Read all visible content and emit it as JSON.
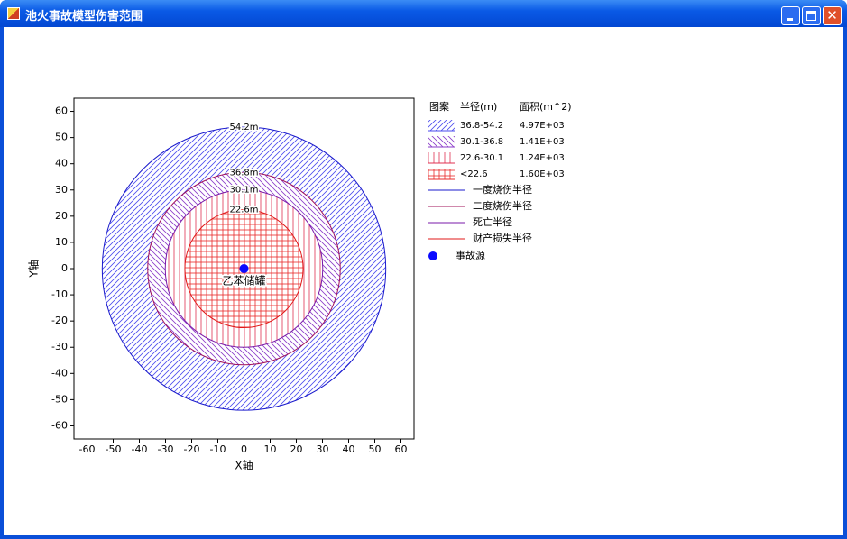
{
  "window": {
    "title": "池火事故模型伤害范围"
  },
  "chart_data": {
    "type": "radius-zones",
    "xlabel": "X轴",
    "ylabel": "Y轴",
    "xlim": [
      -65,
      65
    ],
    "ylim": [
      -65,
      65
    ],
    "xticks": [
      -60,
      -50,
      -40,
      -30,
      -20,
      -10,
      0,
      10,
      20,
      30,
      40,
      50,
      60
    ],
    "yticks": [
      -60,
      -50,
      -40,
      -30,
      -20,
      -10,
      0,
      10,
      20,
      30,
      40,
      50,
      60
    ],
    "circles": [
      {
        "name": "一度烧伤半径",
        "color": "#1a1acc",
        "radius": 54.2,
        "label": "54.2m"
      },
      {
        "name": "二度烧伤半径",
        "color": "#a0105a",
        "radius": 36.8,
        "label": "36.8m"
      },
      {
        "name": "死亡半径",
        "color": "#7a1aa8",
        "radius": 30.1,
        "label": "30.1m"
      },
      {
        "name": "财产损失半径",
        "color": "#e01818",
        "radius": 22.6,
        "label": "22.6m"
      }
    ],
    "zone_table": {
      "headers": [
        "图案",
        "半径(m)",
        "面积(m^2)"
      ],
      "rows": [
        {
          "range": "36.8-54.2",
          "area": "4.97E+03",
          "hatch": "forward-diagonal",
          "color": "#4a4aee"
        },
        {
          "range": "30.1-36.8",
          "area": "1.41E+03",
          "hatch": "backward-diagonal",
          "color": "#8a3ac8"
        },
        {
          "range": "22.6-30.1",
          "area": "1.24E+03",
          "hatch": "vertical",
          "color": "#e03050"
        },
        {
          "range": "<22.6",
          "area": "1.60E+03",
          "hatch": "grid",
          "color": "#e82828"
        }
      ]
    },
    "source": {
      "name": "事故源",
      "label": "乙苯储罐",
      "x": 0,
      "y": 0,
      "color": "#0a0aff"
    }
  }
}
